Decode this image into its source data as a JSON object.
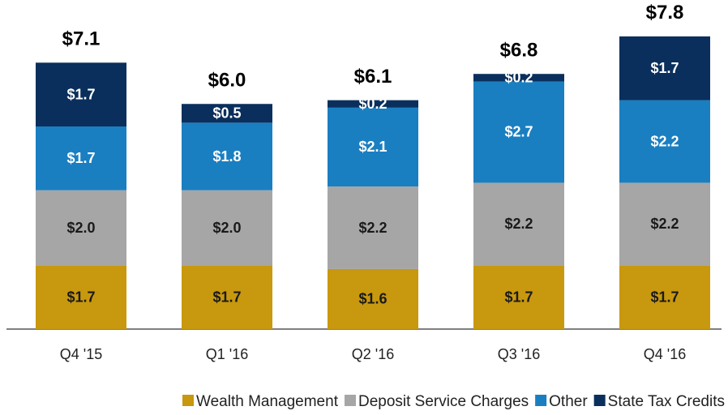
{
  "chart_data": {
    "type": "stacked_bar",
    "categories": [
      "Q4 '15",
      "Q1 '16",
      "Q2 '16",
      "Q3 '16",
      "Q4 '16"
    ],
    "series": [
      {
        "name": "Wealth Management",
        "color": "#c8980e",
        "label_color": "#1a1a1a",
        "values": [
          1.7,
          1.7,
          1.6,
          1.7,
          1.7
        ],
        "value_labels": [
          "$1.7",
          "$1.7",
          "$1.6",
          "$1.7",
          "$1.7"
        ]
      },
      {
        "name": "Deposit Service Charges",
        "color": "#a6a6a6",
        "label_color": "#1a1a1a",
        "values": [
          2.0,
          2.0,
          2.2,
          2.2,
          2.2
        ],
        "value_labels": [
          "$2.0",
          "$2.0",
          "$2.2",
          "$2.2",
          "$2.2"
        ]
      },
      {
        "name": "Other",
        "color": "#1a7fc1",
        "label_color": "#ffffff",
        "values": [
          1.7,
          1.8,
          2.1,
          2.7,
          2.2
        ],
        "value_labels": [
          "$1.7",
          "$1.8",
          "$2.1",
          "$2.7",
          "$2.2"
        ]
      },
      {
        "name": "State Tax Credits",
        "color": "#0a2f5c",
        "label_color": "#ffffff",
        "values": [
          1.7,
          0.5,
          0.2,
          0.2,
          1.7
        ],
        "value_labels": [
          "$1.7",
          "$0.5",
          "$0.2",
          "$0.2",
          "$1.7"
        ]
      }
    ],
    "totals": [
      7.1,
      6.0,
      6.1,
      6.8,
      7.8
    ],
    "total_labels": [
      "$7.1",
      "$6.0",
      "$6.1",
      "$6.8",
      "$7.8"
    ],
    "ylim": [
      0,
      8.5
    ],
    "legend": "bottom"
  }
}
